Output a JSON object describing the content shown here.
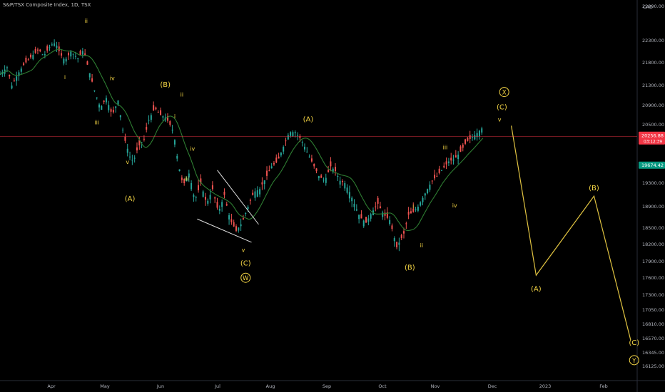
{
  "header": {
    "symbol_title": "S&P/TSX Composite Index, 1D, TSX"
  },
  "chart_data": {
    "type": "candlestick",
    "title": "S&P/TSX Composite Index, 1D, TSX",
    "currency": "CAD",
    "x_ticks": [
      "Apr",
      "May",
      "Jun",
      "Jul",
      "Aug",
      "Sep",
      "Oct",
      "Nov",
      "Dec",
      "2023",
      "Feb"
    ],
    "y_ticks": [
      "22800.00",
      "22300.00",
      "21800.00",
      "21300.00",
      "20900.00",
      "20500.00",
      "19700.00",
      "19300.00",
      "18900.00",
      "18500.00",
      "18200.00",
      "17900.00",
      "17600.00",
      "17300.00",
      "17050.00",
      "16810.00",
      "16570.00",
      "16345.00",
      "16125.00"
    ],
    "ylim": [
      16000,
      23000
    ],
    "last_price": {
      "value": "20256.88",
      "countdown": "03:12:39",
      "color": "#f23645"
    },
    "ma_value": {
      "value": "19674.42",
      "color": "#089981"
    },
    "colors": {
      "up": "#26a69a",
      "down": "#ef5350",
      "ma": "#2e7d32",
      "projection": "#e0c341",
      "wave_label": "#f2d344",
      "wedge": "#e0e0e0"
    },
    "price_path": [
      [
        0,
        21550
      ],
      [
        6,
        21700
      ],
      [
        10,
        21300
      ],
      [
        15,
        21550
      ],
      [
        20,
        21750
      ],
      [
        27,
        21950
      ],
      [
        33,
        22100
      ],
      [
        37,
        21950
      ],
      [
        43,
        22200
      ],
      [
        47,
        22250
      ],
      [
        51,
        22000
      ],
      [
        55,
        21850
      ],
      [
        60,
        22050
      ],
      [
        66,
        21900
      ],
      [
        71,
        22100
      ],
      [
        73,
        21850
      ],
      [
        80,
        21200
      ],
      [
        85,
        20850
      ],
      [
        90,
        21050
      ],
      [
        95,
        20700
      ],
      [
        100,
        21000
      ],
      [
        105,
        20250
      ],
      [
        110,
        19850
      ],
      [
        113,
        19750
      ],
      [
        117,
        20050
      ],
      [
        122,
        20200
      ],
      [
        126,
        20600
      ],
      [
        131,
        20850
      ],
      [
        136,
        20700
      ],
      [
        140,
        20650
      ],
      [
        143,
        20550
      ],
      [
        147,
        20350
      ],
      [
        151,
        19700
      ],
      [
        155,
        19250
      ],
      [
        160,
        19500
      ],
      [
        165,
        19000
      ],
      [
        170,
        19300
      ],
      [
        175,
        18950
      ],
      [
        180,
        19200
      ],
      [
        185,
        18800
      ],
      [
        190,
        19100
      ],
      [
        195,
        18650
      ],
      [
        200,
        18450
      ],
      [
        205,
        18600
      ],
      [
        210,
        18900
      ],
      [
        215,
        19150
      ],
      [
        220,
        19200
      ],
      [
        225,
        19400
      ],
      [
        230,
        19650
      ],
      [
        235,
        19750
      ],
      [
        240,
        20050
      ],
      [
        245,
        20350
      ],
      [
        250,
        20350
      ],
      [
        255,
        20200
      ],
      [
        260,
        19950
      ],
      [
        265,
        19700
      ],
      [
        270,
        19450
      ],
      [
        275,
        19350
      ],
      [
        280,
        19650
      ],
      [
        284,
        19550
      ],
      [
        288,
        19350
      ],
      [
        292,
        19300
      ],
      [
        296,
        19150
      ],
      [
        300,
        18950
      ],
      [
        305,
        18700
      ],
      [
        310,
        18600
      ],
      [
        315,
        18800
      ],
      [
        320,
        18950
      ],
      [
        325,
        18750
      ],
      [
        330,
        18650
      ],
      [
        336,
        18150
      ],
      [
        342,
        18400
      ],
      [
        346,
        18750
      ],
      [
        350,
        18800
      ],
      [
        354,
        18900
      ],
      [
        358,
        19050
      ],
      [
        362,
        19200
      ],
      [
        366,
        19350
      ],
      [
        370,
        19450
      ],
      [
        375,
        19600
      ],
      [
        380,
        19750
      ],
      [
        385,
        19800
      ],
      [
        390,
        19950
      ],
      [
        395,
        20150
      ],
      [
        400,
        20250
      ],
      [
        405,
        20350
      ],
      [
        409,
        20450
      ]
    ],
    "wave_labels": [
      {
        "text": "ii",
        "price": 22560,
        "bar": 73
      },
      {
        "text": "i",
        "price": 21440,
        "bar": 55
      },
      {
        "text": "iv",
        "price": 21420,
        "bar": 95
      },
      {
        "text": "iii",
        "price": 20510,
        "bar": 82
      },
      {
        "text": "v",
        "price": 19700,
        "bar": 108
      },
      {
        "text": "(A)",
        "price": 19000,
        "bar": 110
      },
      {
        "text": "(B)",
        "price": 21270,
        "bar": 140
      },
      {
        "text": "ii",
        "price": 21080,
        "bar": 154
      },
      {
        "text": "i",
        "price": 20630,
        "bar": 148
      },
      {
        "text": "iv",
        "price": 19970,
        "bar": 163
      },
      {
        "text": "iii",
        "price": 19350,
        "bar": 158
      },
      {
        "text": "v",
        "price": 18070,
        "bar": 206
      },
      {
        "text": "(C)",
        "price": 17830,
        "bar": 208
      },
      {
        "text": "W",
        "price": 17560,
        "bar": 208,
        "circled": true
      },
      {
        "text": "(A)",
        "price": 20570,
        "bar": 261
      },
      {
        "text": "i",
        "price": 18870,
        "bar": 350
      },
      {
        "text": "ii",
        "price": 18150,
        "bar": 357
      },
      {
        "text": "(B)",
        "price": 17750,
        "bar": 347
      },
      {
        "text": "iii",
        "price": 20000,
        "bar": 377
      },
      {
        "text": "iv",
        "price": 18890,
        "bar": 385
      },
      {
        "text": "X",
        "price": 21120,
        "bar": 427,
        "circled": true
      },
      {
        "text": "(C)",
        "price": 20820,
        "bar": 425
      },
      {
        "text": "v",
        "price": 20570,
        "bar": 423
      },
      {
        "text": "(A)",
        "price": 17370,
        "bar": 454
      },
      {
        "text": "(B)",
        "price": 19180,
        "bar": 503
      },
      {
        "text": "(C)",
        "price": 16470,
        "bar": 537
      },
      {
        "text": "Y",
        "price": 16185,
        "bar": 537,
        "circled": true
      }
    ],
    "projection": [
      [
        433,
        20480
      ],
      [
        454,
        17650
      ],
      [
        503,
        19080
      ],
      [
        534,
        16550
      ]
    ],
    "wedge_lines": [
      [
        [
          167,
          18670
        ],
        [
          213,
          18240
        ]
      ],
      [
        [
          184,
          19570
        ],
        [
          219,
          18570
        ]
      ]
    ]
  }
}
